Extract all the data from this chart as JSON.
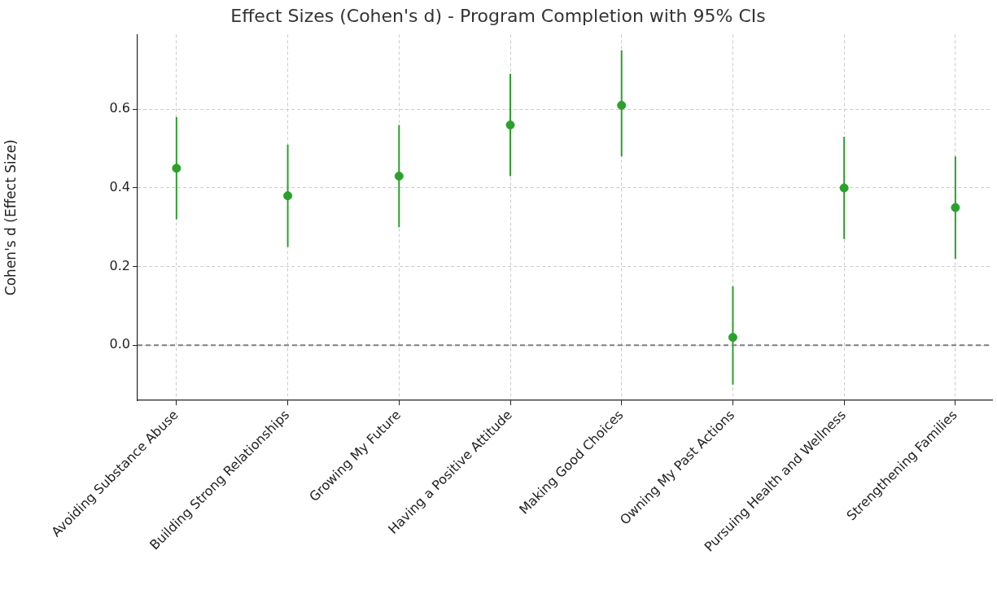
{
  "chart_data": {
    "type": "scatter",
    "title": "Effect Sizes (Cohen's d) - Program Completion with 95% CIs",
    "ylabel": "Cohen's d (Effect Size)",
    "categories": [
      "Avoiding Substance Abuse",
      "Building Strong Relationships",
      "Growing My Future",
      "Having a Positive Attitude",
      "Making Good Choices",
      "Owning My Past Actions",
      "Pursuing Health and Wellness",
      "Strengthening Families"
    ],
    "series": [
      {
        "color": "#2ca02c",
        "values": [
          0.45,
          0.38,
          0.43,
          0.56,
          0.61,
          0.02,
          0.4,
          0.35
        ],
        "errors": [
          [
            0.32,
            0.58
          ],
          [
            0.25,
            0.51
          ],
          [
            0.3,
            0.56
          ],
          [
            0.43,
            0.69
          ],
          [
            0.48,
            0.75
          ],
          [
            -0.1,
            0.15
          ],
          [
            0.27,
            0.53
          ],
          [
            0.22,
            0.48
          ]
        ]
      }
    ],
    "ylim": [
      -0.14,
      0.79
    ],
    "yticks": [
      {
        "value": 0,
        "label": "0.0"
      },
      {
        "value": 0.2,
        "label": "0.2"
      },
      {
        "value": 0.4,
        "label": "0.4"
      },
      {
        "value": 0.6,
        "label": "0.6"
      }
    ],
    "grid": true,
    "legend": false,
    "marker": "circle",
    "ref_lines": [
      {
        "axis": "y",
        "value": 0,
        "color": "#808080",
        "line_style": "dashed"
      }
    ]
  }
}
